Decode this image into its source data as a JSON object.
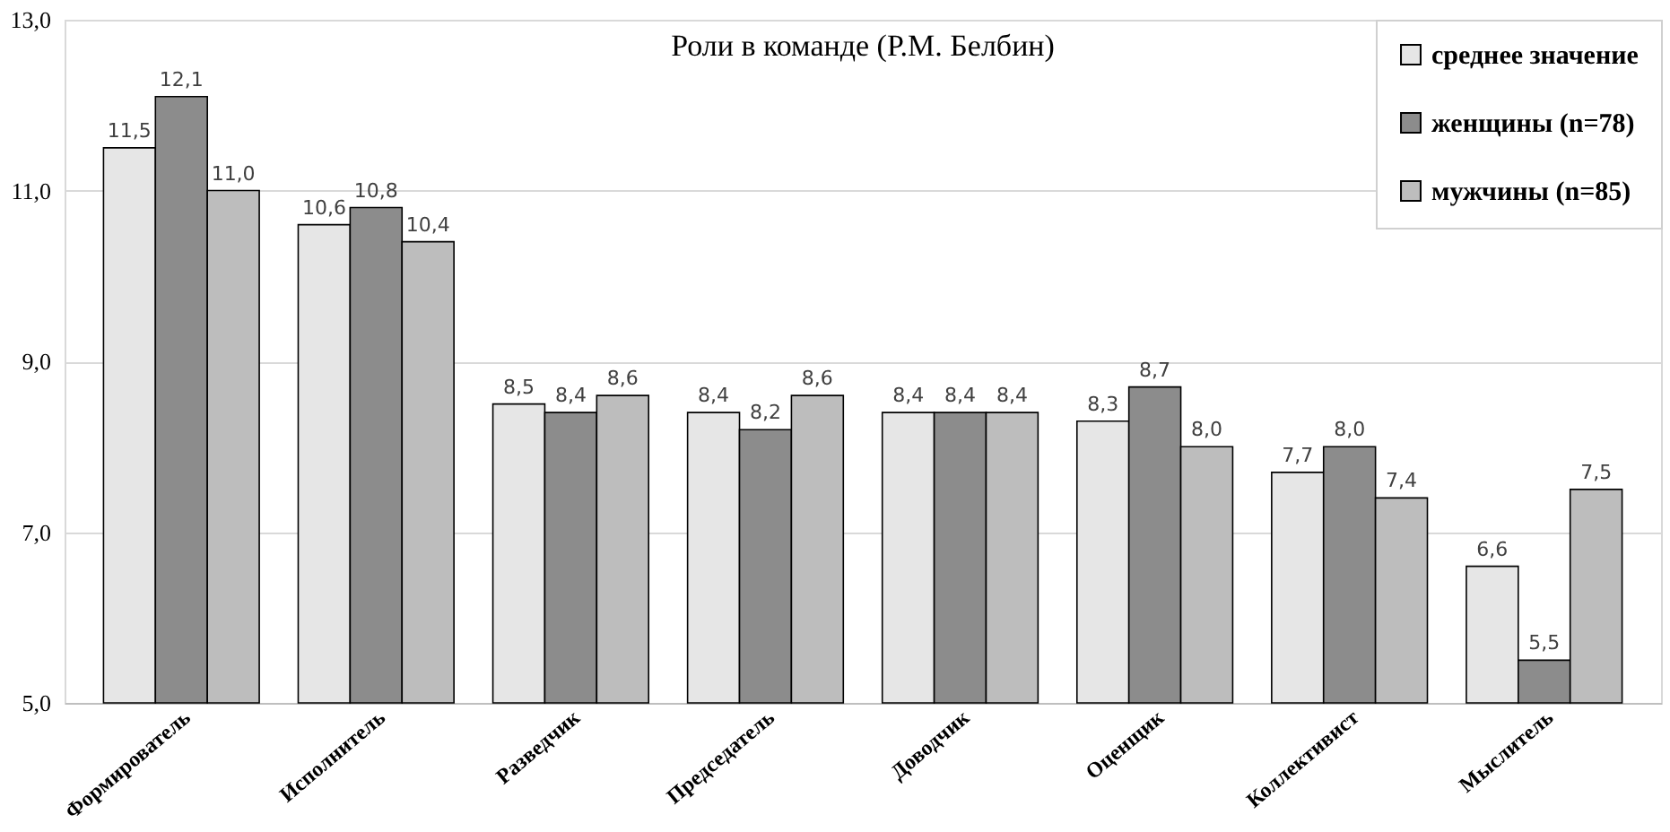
{
  "chart_data": {
    "type": "bar",
    "title": "Роли в команде (Р.М. Белбин)",
    "categories": [
      "Формирователь",
      "Исполнитель",
      "Разведчик",
      "Председатель",
      "Доводчик",
      "Оценщик",
      "Коллективист",
      "Мыслитель"
    ],
    "series": [
      {
        "name": "среднее значение",
        "color": "#e6e6e6",
        "values": [
          11.5,
          10.6,
          8.5,
          8.4,
          8.4,
          8.3,
          7.7,
          6.6
        ],
        "value_labels": [
          "11,5",
          "10,6",
          "8,5",
          "8,4",
          "8,4",
          "8,3",
          "7,7",
          "6,6"
        ]
      },
      {
        "name": "женщины (n=78)",
        "color": "#8c8c8c",
        "values": [
          12.1,
          10.8,
          8.4,
          8.2,
          8.4,
          8.7,
          8.0,
          5.5
        ],
        "value_labels": [
          "12,1",
          "10,8",
          "8,4",
          "8,2",
          "8,4",
          "8,7",
          "8,0",
          "5,5"
        ]
      },
      {
        "name": "мужчины (n=85)",
        "color": "#bdbdbd",
        "values": [
          11.0,
          10.4,
          8.6,
          8.6,
          8.4,
          8.0,
          7.4,
          7.5
        ],
        "value_labels": [
          "11,0",
          "10,4",
          "8,6",
          "8,6",
          "8,4",
          "8,0",
          "7,4",
          "7,5"
        ]
      }
    ],
    "ylim": [
      5,
      13
    ],
    "yticks": [
      {
        "value": 5,
        "label": "5,0"
      },
      {
        "value": 7,
        "label": "7,0"
      },
      {
        "value": 9,
        "label": "9,0"
      },
      {
        "value": 11,
        "label": "11,0"
      },
      {
        "value": 13,
        "label": "13,0"
      }
    ],
    "grid": "y",
    "legend": "top right"
  }
}
